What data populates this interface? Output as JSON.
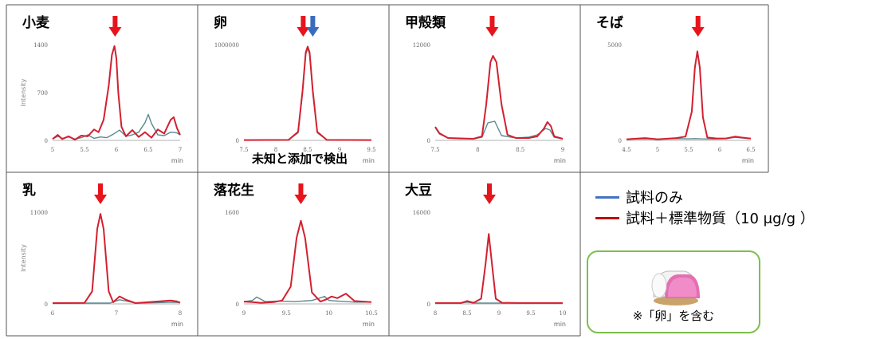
{
  "legend": {
    "items": [
      {
        "label": "試料のみ",
        "color": "#4472c4"
      },
      {
        "label": "試料＋標準物質（10 μg/g ）",
        "color": "#c00000"
      }
    ]
  },
  "note": {
    "text": "※「卵」を含む"
  },
  "colors": {
    "sample": "#5a8a90",
    "spiked": "#d32030",
    "arrow_red": "#e8141c",
    "arrow_blue": "#3a6bbf"
  },
  "chart_data": [
    {
      "type": "line",
      "title": "小麦",
      "ylabel": "Intensity",
      "xlabel": "min",
      "xlim": [
        5,
        7
      ],
      "ylim": [
        0,
        1400
      ],
      "xticks": [
        5,
        5.5,
        6,
        6.5,
        7
      ],
      "xtick_labels": [
        "5",
        "5.5",
        "6",
        "6.5",
        "7"
      ],
      "yticks": [
        0,
        700,
        1400
      ],
      "ytick_labels": [
        "0",
        "700",
        "1400"
      ],
      "arrows": [
        {
          "x": 5.98,
          "color": "red"
        }
      ],
      "series": [
        {
          "key": "sample",
          "x": [
            5,
            5.08,
            5.15,
            5.25,
            5.35,
            5.45,
            5.55,
            5.65,
            5.75,
            5.85,
            5.95,
            6.05,
            6.15,
            6.25,
            6.35,
            6.45,
            6.5,
            6.55,
            6.65,
            6.75,
            6.85,
            6.95,
            7
          ],
          "y": [
            20,
            60,
            30,
            50,
            20,
            40,
            80,
            30,
            50,
            40,
            90,
            150,
            60,
            80,
            120,
            260,
            380,
            250,
            80,
            70,
            120,
            110,
            80
          ]
        },
        {
          "key": "spiked",
          "x": [
            5,
            5.08,
            5.15,
            5.25,
            5.35,
            5.45,
            5.55,
            5.65,
            5.72,
            5.8,
            5.88,
            5.93,
            5.97,
            6.0,
            6.03,
            6.08,
            6.15,
            6.25,
            6.35,
            6.45,
            6.55,
            6.65,
            6.75,
            6.85,
            6.9,
            6.95,
            7
          ],
          "y": [
            20,
            80,
            20,
            60,
            10,
            70,
            60,
            160,
            120,
            300,
            800,
            1250,
            1380,
            1200,
            700,
            200,
            60,
            150,
            50,
            120,
            40,
            160,
            100,
            300,
            340,
            180,
            80
          ]
        }
      ]
    },
    {
      "type": "line",
      "title": "卵",
      "ylabel": "",
      "xlabel": "min",
      "xlim": [
        7.5,
        9.5
      ],
      "ylim": [
        0,
        1000000
      ],
      "xticks": [
        7.5,
        8,
        8.5,
        9,
        9.5
      ],
      "xtick_labels": [
        "7.5",
        "8",
        "8.5",
        "9",
        "9.5"
      ],
      "yticks": [
        0,
        1000000
      ],
      "ytick_labels": [
        "0",
        "1000000"
      ],
      "arrows": [
        {
          "x": 8.43,
          "color": "red"
        },
        {
          "x": 8.58,
          "color": "blue"
        }
      ],
      "annotation": "未知と添加で検出",
      "series": [
        {
          "key": "sample",
          "x": [
            7.5,
            8.2,
            8.35,
            8.42,
            8.47,
            8.5,
            8.53,
            8.58,
            8.65,
            8.8,
            9.5
          ],
          "y": [
            3000,
            5000,
            80000,
            500000,
            900000,
            960000,
            900000,
            500000,
            80000,
            5000,
            3000
          ]
        },
        {
          "key": "spiked",
          "x": [
            7.5,
            8.2,
            8.35,
            8.42,
            8.47,
            8.5,
            8.53,
            8.58,
            8.65,
            8.8,
            9.5
          ],
          "y": [
            3000,
            5000,
            90000,
            520000,
            920000,
            980000,
            920000,
            520000,
            90000,
            5000,
            3000
          ]
        }
      ]
    },
    {
      "type": "line",
      "title": "甲殻類",
      "ylabel": "",
      "xlabel": "min",
      "xlim": [
        7.5,
        9
      ],
      "ylim": [
        0,
        12000
      ],
      "xticks": [
        7.5,
        8,
        8.5,
        9
      ],
      "xtick_labels": [
        "7.5",
        "8",
        "8.5",
        "9"
      ],
      "yticks": [
        0,
        12000
      ],
      "ytick_labels": [
        "0",
        "12000"
      ],
      "arrows": [
        {
          "x": 8.17,
          "color": "red"
        }
      ],
      "series": [
        {
          "key": "sample",
          "x": [
            7.5,
            7.55,
            7.65,
            7.8,
            7.95,
            8.05,
            8.12,
            8.2,
            8.28,
            8.45,
            8.6,
            8.7,
            8.8,
            8.85,
            8.9,
            9
          ],
          "y": [
            1600,
            800,
            300,
            200,
            200,
            400,
            2200,
            2400,
            600,
            300,
            400,
            700,
            1500,
            1300,
            400,
            200
          ]
        },
        {
          "key": "spiked",
          "x": [
            7.5,
            7.55,
            7.65,
            7.8,
            7.95,
            8.05,
            8.1,
            8.15,
            8.18,
            8.22,
            8.28,
            8.35,
            8.45,
            8.6,
            8.7,
            8.78,
            8.82,
            8.86,
            8.9,
            9
          ],
          "y": [
            1700,
            900,
            300,
            250,
            200,
            500,
            4500,
            9800,
            10600,
            9800,
            4500,
            700,
            300,
            300,
            500,
            1500,
            2300,
            1800,
            500,
            200
          ]
        }
      ]
    },
    {
      "type": "line",
      "title": "そば",
      "ylabel": "",
      "xlabel": "min",
      "xlim": [
        4.5,
        6.5
      ],
      "ylim": [
        0,
        5000
      ],
      "xticks": [
        4.5,
        5,
        5.5,
        6,
        6.5
      ],
      "xtick_labels": [
        "4.5",
        "5",
        "5.5",
        "6",
        "6.5"
      ],
      "yticks": [
        0,
        5000
      ],
      "ytick_labels": [
        "0",
        "5000"
      ],
      "arrows": [
        {
          "x": 5.65,
          "color": "red"
        }
      ],
      "series": [
        {
          "key": "sample",
          "x": [
            4.5,
            4.8,
            5.0,
            5.3,
            5.5,
            5.6,
            5.7,
            5.9,
            6.1,
            6.25,
            6.35,
            6.5
          ],
          "y": [
            60,
            80,
            60,
            90,
            80,
            90,
            80,
            70,
            90,
            160,
            130,
            90
          ]
        },
        {
          "key": "spiked",
          "x": [
            4.5,
            4.8,
            5.0,
            5.3,
            5.45,
            5.55,
            5.6,
            5.64,
            5.68,
            5.73,
            5.8,
            5.95,
            6.1,
            6.25,
            6.35,
            6.5
          ],
          "y": [
            60,
            120,
            60,
            120,
            200,
            1500,
            3800,
            4650,
            3800,
            1200,
            150,
            100,
            100,
            200,
            150,
            90
          ]
        }
      ]
    },
    {
      "type": "line",
      "title": "乳",
      "ylabel": "Intensity",
      "xlabel": "min",
      "xlim": [
        6,
        8
      ],
      "ylim": [
        0,
        11000
      ],
      "xticks": [
        6,
        7,
        8
      ],
      "xtick_labels": [
        "6",
        "7",
        "8"
      ],
      "yticks": [
        0,
        11000
      ],
      "ytick_labels": [
        "0",
        "11000"
      ],
      "arrows": [
        {
          "x": 6.75,
          "color": "red"
        }
      ],
      "series": [
        {
          "key": "sample",
          "x": [
            6,
            6.5,
            6.9,
            7.05,
            7.15,
            7.3,
            7.9,
            8
          ],
          "y": [
            100,
            100,
            100,
            500,
            350,
            100,
            200,
            150
          ]
        },
        {
          "key": "spiked",
          "x": [
            6,
            6.5,
            6.62,
            6.7,
            6.75,
            6.8,
            6.88,
            6.95,
            7.05,
            7.15,
            7.3,
            7.85,
            7.95,
            8
          ],
          "y": [
            100,
            120,
            1500,
            9000,
            10800,
            9000,
            1500,
            200,
            900,
            500,
            100,
            400,
            300,
            150
          ]
        }
      ]
    },
    {
      "type": "line",
      "title": "落花生",
      "ylabel": "",
      "xlabel": "min",
      "xlim": [
        9,
        10.5
      ],
      "ylim": [
        0,
        1600
      ],
      "xticks": [
        9,
        9.5,
        10,
        10.5
      ],
      "xtick_labels": [
        "9",
        "9.5",
        "10",
        "10.5"
      ],
      "yticks": [
        0,
        1600
      ],
      "ytick_labels": [
        "0",
        "1600"
      ],
      "arrows": [
        {
          "x": 9.67,
          "color": "red"
        }
      ],
      "series": [
        {
          "key": "sample",
          "x": [
            9,
            9.1,
            9.15,
            9.25,
            9.4,
            9.6,
            9.8,
            9.95,
            10.0,
            10.1,
            10.2,
            10.3,
            10.5
          ],
          "y": [
            40,
            60,
            120,
            40,
            50,
            40,
            60,
            130,
            60,
            50,
            40,
            30,
            30
          ]
        },
        {
          "key": "spiked",
          "x": [
            9,
            9.1,
            9.2,
            9.35,
            9.45,
            9.55,
            9.62,
            9.67,
            9.72,
            9.8,
            9.9,
            9.97,
            10.03,
            10.1,
            10.2,
            10.3,
            10.5
          ],
          "y": [
            40,
            30,
            20,
            30,
            60,
            300,
            1150,
            1450,
            1150,
            200,
            40,
            80,
            130,
            100,
            180,
            50,
            30
          ]
        }
      ]
    },
    {
      "type": "line",
      "title": "大豆",
      "ylabel": "",
      "xlabel": "min",
      "xlim": [
        8,
        10
      ],
      "ylim": [
        0,
        16000
      ],
      "xticks": [
        8,
        8.5,
        9,
        9.5,
        10
      ],
      "xtick_labels": [
        "8",
        "8.5",
        "9",
        "9.5",
        "10"
      ],
      "yticks": [
        0,
        16000
      ],
      "ytick_labels": [
        "0",
        "16000"
      ],
      "arrows": [
        {
          "x": 8.85,
          "color": "red"
        }
      ],
      "series": [
        {
          "key": "sample",
          "x": [
            8,
            8.4,
            8.5,
            8.6,
            8.8,
            9.2,
            10
          ],
          "y": [
            150,
            150,
            300,
            150,
            150,
            150,
            150
          ]
        },
        {
          "key": "spiked",
          "x": [
            8,
            8.4,
            8.5,
            8.6,
            8.72,
            8.79,
            8.84,
            8.89,
            8.95,
            9.05,
            9.3,
            10
          ],
          "y": [
            150,
            150,
            500,
            200,
            900,
            7000,
            12200,
            7000,
            900,
            200,
            150,
            150
          ]
        }
      ]
    }
  ]
}
